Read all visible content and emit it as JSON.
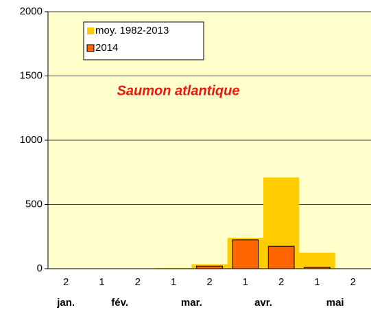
{
  "chart_data": {
    "type": "bar",
    "annotation": "Saumon atlantique",
    "categories": [
      "2",
      "1",
      "2",
      "1",
      "2",
      "1",
      "2",
      "1",
      "2"
    ],
    "months": [
      "jan.",
      "fév.",
      "mar.",
      "avr.",
      "mai"
    ],
    "category_months": [
      0,
      1,
      1,
      2,
      2,
      3,
      3,
      4,
      4
    ],
    "series": [
      {
        "name": "moy. 1982-2013",
        "color": "#ffcc00",
        "values": [
          0,
          0,
          0,
          5,
          35,
          240,
          710,
          125,
          3
        ]
      },
      {
        "name": "2014",
        "color": "#ff6600",
        "values": [
          0,
          0,
          0,
          0,
          20,
          225,
          175,
          10,
          0
        ]
      }
    ],
    "ylim": [
      0,
      2000
    ],
    "yticks": [
      0,
      500,
      1000,
      1500,
      2000
    ],
    "grid": true,
    "plot_background": "#ffffcc",
    "legend": "upper left"
  }
}
